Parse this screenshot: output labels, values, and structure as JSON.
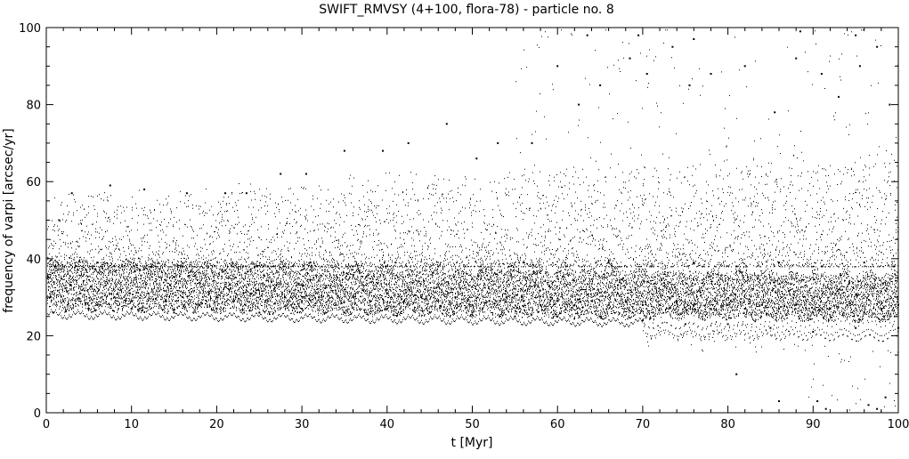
{
  "chart_data": {
    "type": "scatter",
    "title": "SWIFT_RMVSY (4+100, flora-78) - particle no. 8",
    "xlabel": "t [Myr]",
    "ylabel": "frequency of varpi [arcsec/yr]",
    "xlim": [
      0,
      100
    ],
    "ylim": [
      0,
      100
    ],
    "xticks": [
      0,
      10,
      20,
      30,
      40,
      50,
      60,
      70,
      80,
      90,
      100
    ],
    "yticks": [
      0,
      20,
      40,
      60,
      80,
      100
    ],
    "xtick_labels": [
      "0",
      "10",
      "20",
      "30",
      "40",
      "50",
      "60",
      "70",
      "80",
      "90",
      "100"
    ],
    "ytick_labels": [
      "0",
      "20",
      "40",
      "60",
      "80",
      "100"
    ],
    "grid": false,
    "marker_color": "#000000",
    "series": [
      {
        "points": [
          [
            0.5,
            30
          ],
          [
            2,
            29
          ],
          [
            4,
            31
          ],
          [
            6,
            28
          ],
          [
            8,
            30
          ],
          [
            10,
            29
          ],
          [
            12,
            31
          ],
          [
            14,
            29
          ],
          [
            16,
            30
          ],
          [
            18,
            28
          ],
          [
            20,
            30
          ],
          [
            22,
            29
          ],
          [
            24,
            31
          ],
          [
            26,
            29
          ],
          [
            28,
            30
          ],
          [
            30,
            29
          ],
          [
            32,
            30
          ],
          [
            34,
            28
          ],
          [
            36,
            30
          ],
          [
            38,
            29
          ],
          [
            40,
            31
          ],
          [
            42,
            29
          ],
          [
            44,
            30
          ],
          [
            46,
            29
          ],
          [
            48,
            30
          ],
          [
            50,
            28
          ],
          [
            52,
            29
          ],
          [
            54,
            30
          ],
          [
            56,
            29
          ],
          [
            58,
            28
          ],
          [
            60,
            29
          ],
          [
            62,
            28
          ],
          [
            64,
            29
          ],
          [
            66,
            28
          ],
          [
            68,
            29
          ],
          [
            70,
            28
          ],
          [
            72,
            28
          ],
          [
            74,
            29
          ],
          [
            76,
            28
          ],
          [
            78,
            27
          ],
          [
            80,
            28
          ],
          [
            82,
            27
          ],
          [
            84,
            28
          ],
          [
            86,
            27
          ],
          [
            88,
            28
          ],
          [
            90,
            26
          ],
          [
            92,
            27
          ],
          [
            94,
            28
          ],
          [
            96,
            26
          ],
          [
            98,
            27
          ],
          [
            100,
            28
          ],
          [
            0.8,
            26
          ],
          [
            5,
            27
          ],
          [
            10,
            27
          ],
          [
            15,
            26
          ],
          [
            20,
            27
          ],
          [
            25,
            26
          ],
          [
            30,
            27
          ],
          [
            35,
            26
          ],
          [
            40,
            27
          ],
          [
            45,
            26
          ],
          [
            50,
            26
          ],
          [
            55,
            25
          ],
          [
            60,
            25
          ],
          [
            65,
            25
          ],
          [
            70,
            24
          ],
          [
            75,
            23
          ],
          [
            80,
            23
          ],
          [
            85,
            22
          ],
          [
            90,
            21
          ],
          [
            95,
            22
          ],
          [
            100,
            22
          ],
          [
            1,
            38
          ],
          [
            6,
            39
          ],
          [
            11,
            37
          ],
          [
            16,
            38
          ],
          [
            21,
            37
          ],
          [
            26,
            38
          ],
          [
            31,
            39
          ],
          [
            36,
            38
          ],
          [
            41,
            39
          ],
          [
            46,
            38
          ],
          [
            51,
            38
          ],
          [
            56,
            39
          ],
          [
            61,
            38
          ],
          [
            66,
            39
          ],
          [
            71,
            38
          ],
          [
            76,
            39
          ],
          [
            81,
            38
          ],
          [
            86,
            39
          ],
          [
            91,
            38
          ],
          [
            96,
            39
          ],
          [
            99.5,
            38
          ],
          [
            1.5,
            50
          ],
          [
            3,
            57
          ],
          [
            7.5,
            59
          ],
          [
            11.5,
            58
          ],
          [
            16.5,
            57
          ],
          [
            21,
            57
          ],
          [
            23.5,
            57
          ],
          [
            27.5,
            62
          ],
          [
            30.5,
            62
          ],
          [
            35,
            68
          ],
          [
            39.5,
            68
          ],
          [
            42.5,
            70
          ],
          [
            47,
            75
          ],
          [
            50.5,
            66
          ],
          [
            53,
            70
          ],
          [
            57,
            70
          ],
          [
            60,
            90
          ],
          [
            62.5,
            80
          ],
          [
            65,
            85
          ],
          [
            68.5,
            92
          ],
          [
            70.5,
            88
          ],
          [
            73.5,
            95
          ],
          [
            75.5,
            85
          ],
          [
            78,
            88
          ],
          [
            82,
            90
          ],
          [
            85.5,
            78
          ],
          [
            88,
            92
          ],
          [
            91,
            88
          ],
          [
            93,
            82
          ],
          [
            95.5,
            90
          ],
          [
            97.5,
            95
          ],
          [
            99,
            80
          ],
          [
            63.5,
            98
          ],
          [
            69.5,
            98
          ],
          [
            76,
            97
          ],
          [
            88.5,
            99
          ],
          [
            95,
            98
          ],
          [
            81,
            10
          ],
          [
            86,
            3
          ],
          [
            90.5,
            3
          ],
          [
            91.5,
            1
          ],
          [
            96.5,
            2
          ],
          [
            97.5,
            1
          ],
          [
            98.5,
            4
          ]
        ]
      }
    ]
  }
}
